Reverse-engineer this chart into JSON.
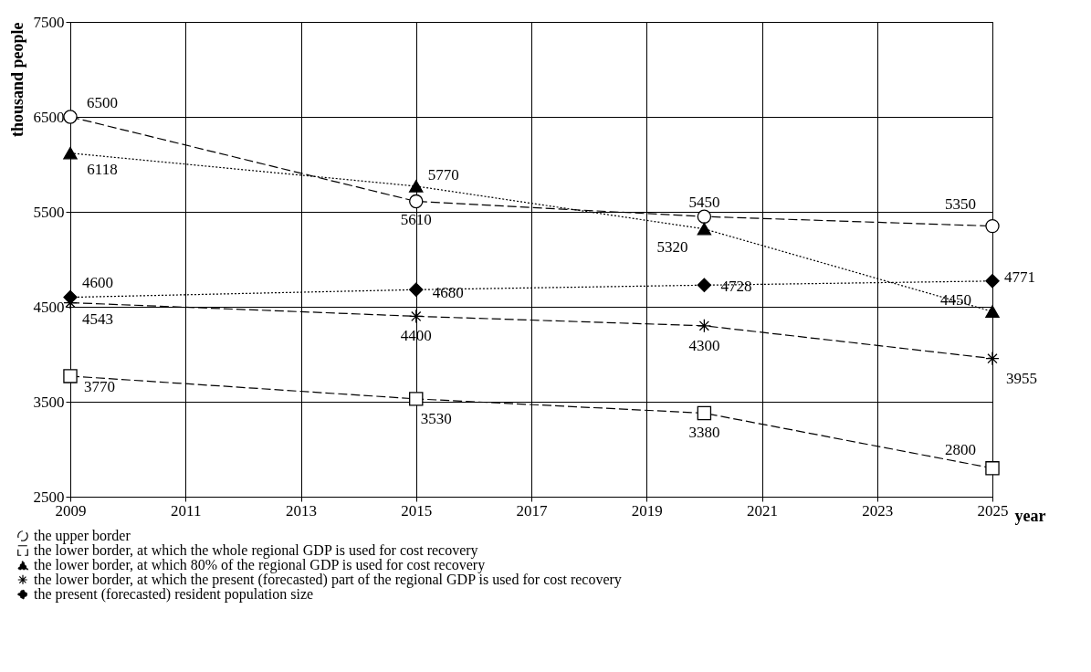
{
  "chart_data": {
    "type": "line",
    "xlabel": "year",
    "ylabel": "thousand people",
    "x": [
      2009,
      2015,
      2020,
      2025
    ],
    "xlim": [
      2009,
      2025
    ],
    "xticks": [
      2009,
      2011,
      2013,
      2015,
      2017,
      2019,
      2021,
      2023,
      2025
    ],
    "ylim": [
      2500,
      7500
    ],
    "yticks": [
      2500,
      3500,
      4500,
      5500,
      6500,
      7500
    ],
    "grid": true,
    "legend": "bottom",
    "data_labels": true,
    "series": [
      {
        "name": "the upper border",
        "color": "#000000",
        "marker": "circle",
        "line_style": "dashed",
        "values": [
          6500,
          5610,
          5450,
          5350
        ]
      },
      {
        "name": "the lower border, at which the whole regional GDP is used for cost recovery",
        "color": "#000000",
        "marker": "square",
        "line_style": "dashed",
        "values": [
          3770,
          3530,
          3380,
          2800
        ]
      },
      {
        "name": "the lower border, at which 80% of the regional GDP is used for cost recovery",
        "color": "#000000",
        "marker": "triangle",
        "line_style": "dotted",
        "values": [
          6118,
          5770,
          5320,
          4450
        ]
      },
      {
        "name": "the lower border, at which the present (forecasted) part of the regional GDP is used for cost recovery",
        "color": "#000000",
        "marker": "cross",
        "line_style": "dashed",
        "values": [
          4543,
          4400,
          4300,
          3955
        ]
      },
      {
        "name": "the present (forecasted) resident population size",
        "color": "#000000",
        "marker": "diamond",
        "line_style": "dotted",
        "values": [
          4600,
          4680,
          4728,
          4771
        ]
      }
    ]
  }
}
